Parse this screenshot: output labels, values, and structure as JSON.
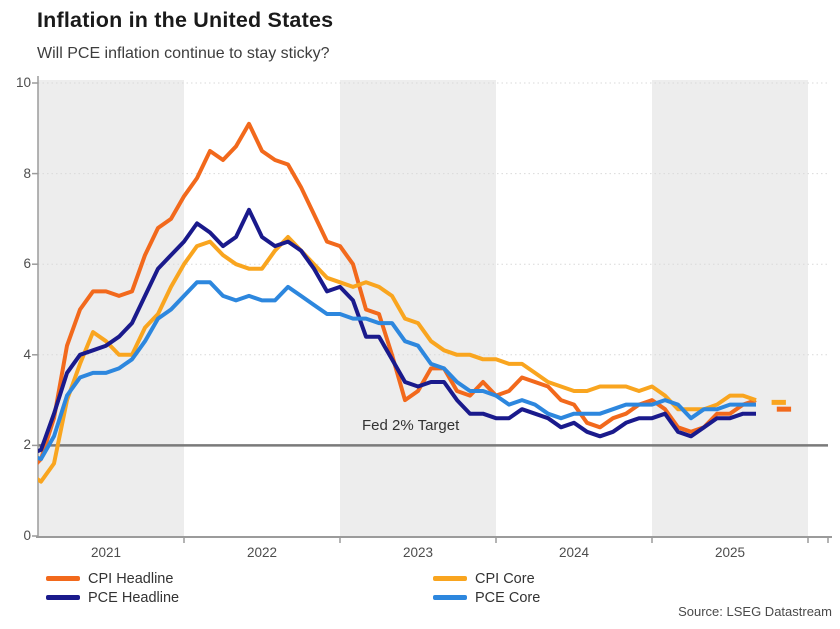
{
  "header": {
    "title": "Inflation in the United States",
    "subtitle": "Will PCE inflation continue to stay sticky?"
  },
  "footer": {
    "source": "Source: LSEG Datastream"
  },
  "chart_data": {
    "type": "line",
    "title": "Inflation in the United States",
    "subtitle": "Will PCE inflation continue to stay sticky?",
    "x_unit": "month",
    "x_start": "2021-01",
    "x_end": "2025-09",
    "x_ticks": [
      "2021",
      "2022",
      "2023",
      "2024",
      "2025"
    ],
    "y_ticks": [
      0,
      2,
      4,
      6,
      8,
      10
    ],
    "ylim": [
      0,
      10
    ],
    "grid": "dotted-horizontal",
    "band_color": "#EDEDED",
    "band_note": "alternating shaded vertical bands for odd years 2021/2023/2025",
    "legend_position": "bottom",
    "target_line": {
      "label": "Fed 2% Target",
      "value": 2,
      "color": "#7A7A7A"
    },
    "series": [
      {
        "name": "CPI Headline",
        "color": "#F2691C",
        "values": [
          1.4,
          1.7,
          2.6,
          4.2,
          5.0,
          5.4,
          5.4,
          5.3,
          5.4,
          6.2,
          6.8,
          7.0,
          7.5,
          7.9,
          8.5,
          8.3,
          8.6,
          9.1,
          8.5,
          8.3,
          8.2,
          7.7,
          7.1,
          6.5,
          6.4,
          6.0,
          5.0,
          4.9,
          4.0,
          3.0,
          3.2,
          3.7,
          3.7,
          3.2,
          3.1,
          3.4,
          3.1,
          3.2,
          3.5,
          3.4,
          3.3,
          3.0,
          2.9,
          2.5,
          2.4,
          2.6,
          2.7,
          2.9,
          3.0,
          2.8,
          2.4,
          2.3,
          2.4,
          2.7,
          2.7,
          2.9,
          3.0
        ]
      },
      {
        "name": "CPI Core",
        "color": "#F9A51F",
        "values": [
          1.4,
          1.2,
          1.6,
          3.0,
          3.8,
          4.5,
          4.3,
          4.0,
          4.0,
          4.6,
          4.9,
          5.5,
          6.0,
          6.4,
          6.5,
          6.2,
          6.0,
          5.9,
          5.9,
          6.3,
          6.6,
          6.3,
          6.0,
          5.7,
          5.6,
          5.5,
          5.6,
          5.5,
          5.3,
          4.8,
          4.7,
          4.3,
          4.1,
          4.0,
          4.0,
          3.9,
          3.9,
          3.8,
          3.8,
          3.6,
          3.4,
          3.3,
          3.2,
          3.2,
          3.3,
          3.3,
          3.3,
          3.2,
          3.3,
          3.1,
          2.8,
          2.8,
          2.8,
          2.9,
          3.1,
          3.1,
          3.0
        ]
      },
      {
        "name": "PCE Headline",
        "color": "#1A1A8C",
        "values": [
          1.8,
          1.9,
          2.7,
          3.6,
          4.0,
          4.1,
          4.2,
          4.4,
          4.7,
          5.3,
          5.9,
          6.2,
          6.5,
          6.9,
          6.7,
          6.4,
          6.6,
          7.2,
          6.6,
          6.4,
          6.5,
          6.3,
          5.9,
          5.4,
          5.5,
          5.2,
          4.4,
          4.4,
          3.9,
          3.4,
          3.3,
          3.4,
          3.4,
          3.0,
          2.7,
          2.7,
          2.6,
          2.6,
          2.8,
          2.7,
          2.6,
          2.4,
          2.5,
          2.3,
          2.2,
          2.3,
          2.5,
          2.6,
          2.6,
          2.7,
          2.3,
          2.2,
          2.4,
          2.6,
          2.6,
          2.7,
          2.7
        ]
      },
      {
        "name": "PCE Core",
        "color": "#2D87DE",
        "values": [
          1.8,
          1.7,
          2.2,
          3.1,
          3.5,
          3.6,
          3.6,
          3.7,
          3.9,
          4.3,
          4.8,
          5.0,
          5.3,
          5.6,
          5.6,
          5.3,
          5.2,
          5.3,
          5.2,
          5.2,
          5.5,
          5.3,
          5.1,
          4.9,
          4.9,
          4.8,
          4.8,
          4.7,
          4.7,
          4.3,
          4.2,
          3.8,
          3.7,
          3.4,
          3.2,
          3.2,
          3.1,
          2.9,
          3.0,
          2.9,
          2.7,
          2.6,
          2.7,
          2.7,
          2.7,
          2.8,
          2.9,
          2.9,
          2.9,
          3.0,
          2.9,
          2.6,
          2.8,
          2.8,
          2.9,
          2.9,
          2.9
        ]
      }
    ],
    "detached_end_dashes": [
      {
        "series": "CPI Core",
        "color": "#F9A51F",
        "value": 2.95,
        "month_span": [
          57.2,
          58.3
        ]
      },
      {
        "series": "CPI Headline",
        "color": "#F2691C",
        "value": 2.8,
        "month_span": [
          57.6,
          58.7
        ]
      }
    ],
    "legend_layout": [
      {
        "slot": "row1-left",
        "series_index": 0
      },
      {
        "slot": "row1-right",
        "series_index": 1
      },
      {
        "slot": "row2-left",
        "series_index": 2
      },
      {
        "slot": "row2-right",
        "series_index": 3
      }
    ]
  }
}
